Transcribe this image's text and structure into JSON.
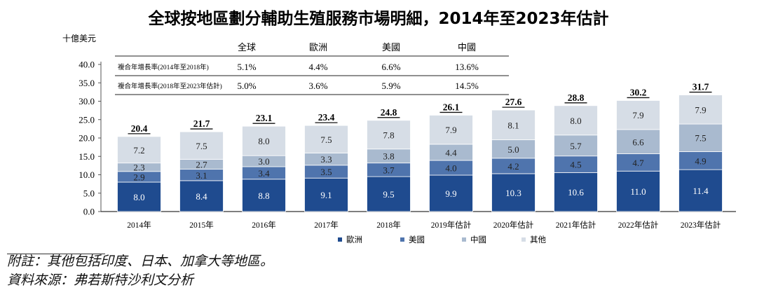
{
  "title": "全球按地區劃分輔助生殖服務市場明細，2014年至2023年估計",
  "unit_label": "十億美元",
  "growth_table": {
    "headers": [
      "",
      "全球",
      "歐洲",
      "美國",
      "中國"
    ],
    "rows": [
      {
        "label": "複合年增長率(2014年至2018年)",
        "values": [
          "5.1%",
          "4.4%",
          "6.6%",
          "13.6%"
        ]
      },
      {
        "label": "複合年增長率(2018年至2023年估計)",
        "values": [
          "5.0%",
          "3.6%",
          "5.9%",
          "14.5%"
        ]
      }
    ]
  },
  "chart_data": {
    "type": "bar",
    "stacked": true,
    "categories": [
      "2014年",
      "2015年",
      "2016年",
      "2017年",
      "2018年",
      "2019年估計",
      "2020年估計",
      "2021年估計",
      "2022年估計",
      "2023年估計"
    ],
    "series": [
      {
        "name": "歐洲",
        "color": "#1f4b8f",
        "values": [
          8.0,
          8.4,
          8.8,
          9.1,
          9.5,
          9.9,
          10.3,
          10.6,
          11.0,
          11.4
        ]
      },
      {
        "name": "美國",
        "color": "#4f74ad",
        "values": [
          2.9,
          3.1,
          3.4,
          3.5,
          3.7,
          4.0,
          4.2,
          4.5,
          4.7,
          4.9
        ]
      },
      {
        "name": "中國",
        "color": "#a9bacf",
        "values": [
          2.3,
          2.7,
          3.0,
          3.3,
          3.8,
          4.4,
          5.0,
          5.7,
          6.6,
          7.5
        ]
      },
      {
        "name": "其他",
        "color": "#d6dde6",
        "values": [
          7.2,
          7.5,
          8.0,
          7.5,
          7.8,
          7.9,
          8.1,
          8.0,
          7.9,
          7.9
        ]
      }
    ],
    "totals": [
      20.4,
      21.7,
      23.1,
      23.4,
      24.8,
      26.1,
      27.6,
      28.8,
      30.2,
      31.7
    ],
    "yticks": [
      "0.0",
      "5.0",
      "10.0",
      "15.0",
      "20.0",
      "25.0",
      "30.0",
      "35.0",
      "40.0"
    ],
    "ylim": [
      0,
      40
    ],
    "legend_position": "bottom"
  },
  "footnotes": {
    "note": "附註：其他包括印度、日本、加拿大等地區。",
    "source": "資料來源：弗若斯特沙利文分析"
  }
}
